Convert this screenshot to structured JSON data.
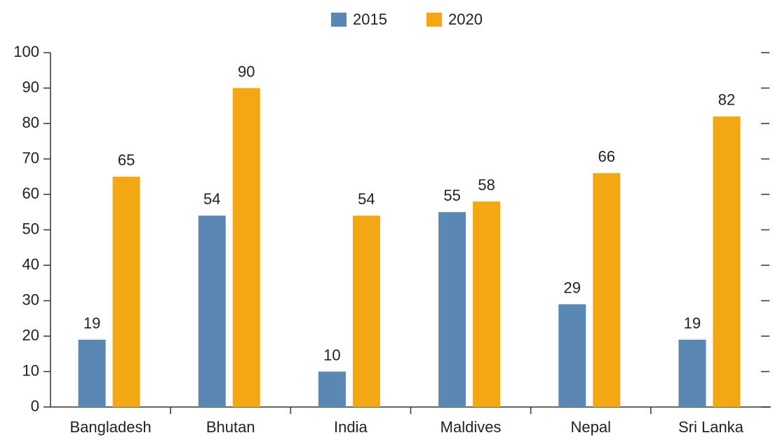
{
  "chart_data": {
    "type": "bar",
    "categories": [
      "Bangladesh",
      "Bhutan",
      "India",
      "Maldives",
      "Nepal",
      "Sri Lanka"
    ],
    "series": [
      {
        "name": "2015",
        "color": "#5b87b5",
        "values": [
          19,
          54,
          10,
          55,
          29,
          19
        ]
      },
      {
        "name": "2020",
        "color": "#f3a712",
        "values": [
          65,
          90,
          54,
          58,
          66,
          82
        ]
      }
    ],
    "ylim": [
      0,
      100
    ],
    "yticks": [
      0,
      10,
      20,
      30,
      40,
      50,
      60,
      70,
      80,
      90,
      100
    ],
    "legend": "top"
  }
}
